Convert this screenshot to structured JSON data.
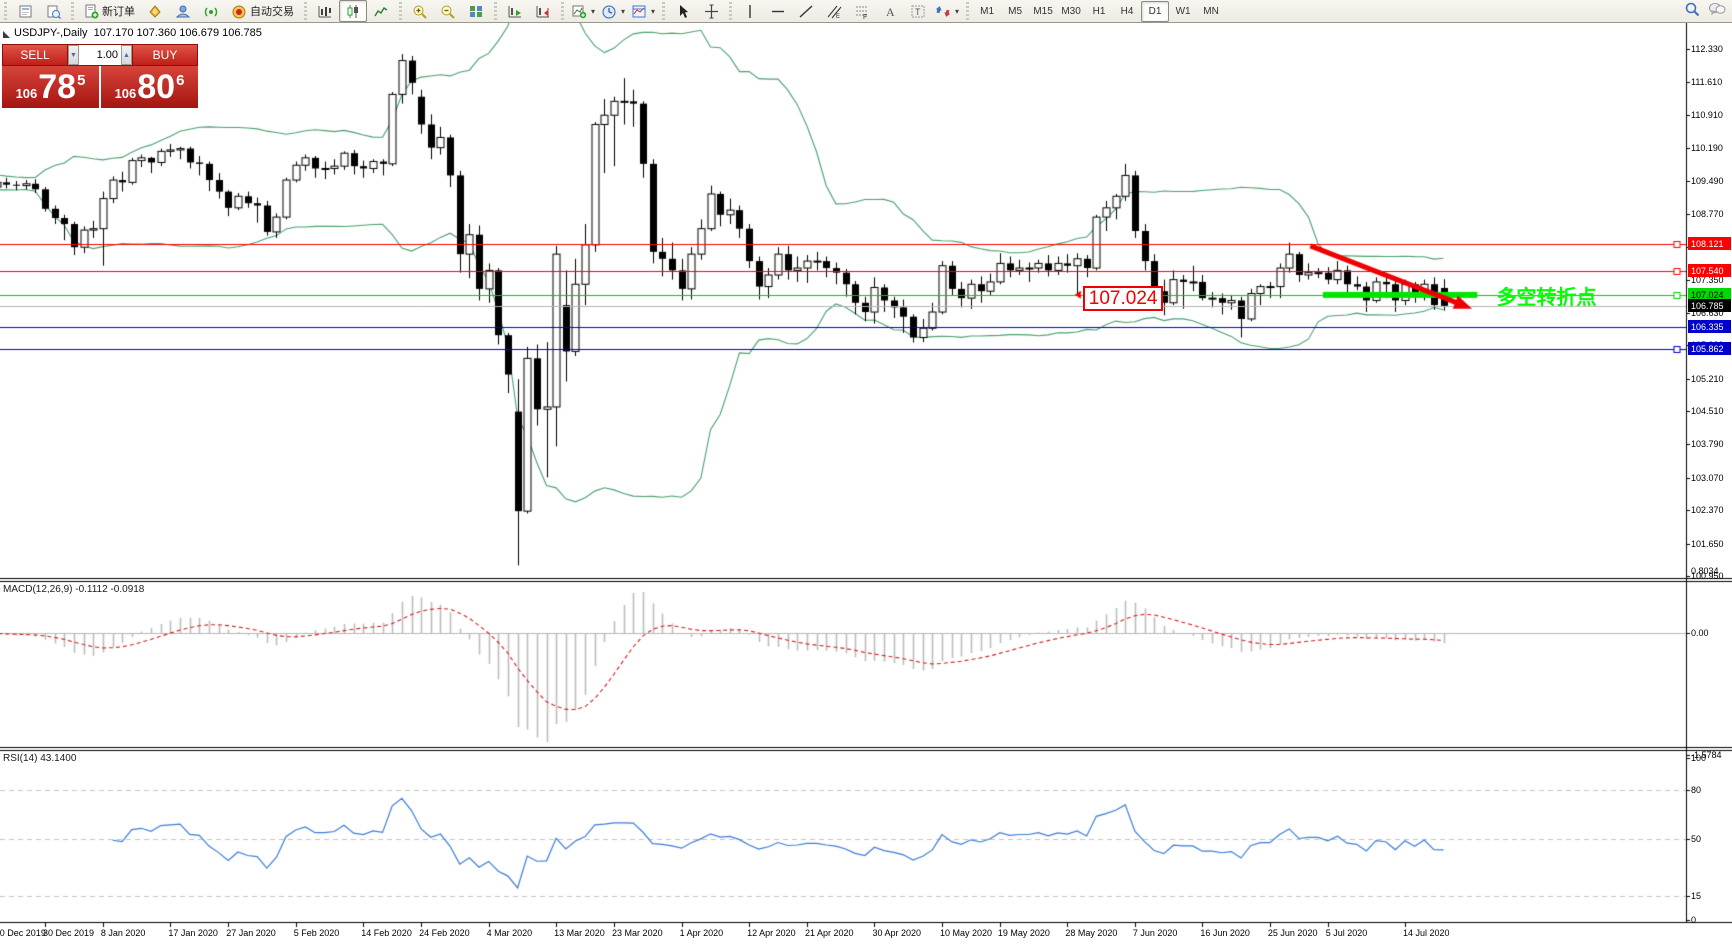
{
  "window": {
    "chart_title_symbol": "USDJPY-,Daily",
    "chart_title_ohlc": "107.170 107.360 106.679 106.785"
  },
  "toolbar": {
    "new_order_label": "新订单",
    "autotrading_label": "自动交易",
    "timeframes": [
      "M1",
      "M5",
      "M15",
      "M30",
      "H1",
      "H4",
      "D1",
      "W1",
      "MN"
    ],
    "active_timeframe": "D1",
    "icon_names": [
      "new-chart-icon",
      "chart-profile-icon",
      "new-order-icon",
      "gold-droplet-icon",
      "community-icon",
      "signals-icon",
      "autotrading-icon",
      "bar-chart-icon",
      "candlestick-chart-icon",
      "line-chart-icon",
      "zoom-in-icon",
      "zoom-out-icon",
      "tile-windows-icon",
      "auto-scroll-icon",
      "chart-shift-icon",
      "indicators-icon",
      "periods-icon",
      "templates-icon",
      "cursor-icon",
      "crosshair-icon",
      "vertical-line-icon",
      "horizontal-line-icon",
      "trendline-icon",
      "channel-icon",
      "fibonacci-icon",
      "text-icon",
      "text-label-icon",
      "arrows-icon",
      "search-icon",
      "chat-icon"
    ]
  },
  "trade_panel": {
    "sell_label": "SELL",
    "buy_label": "BUY",
    "volume": "1.00",
    "sell_prefix": "106",
    "sell_big": "78",
    "sell_sup": "5",
    "buy_prefix": "106",
    "buy_big": "80",
    "buy_sup": "6"
  },
  "indicators": {
    "macd_name": "MACD(12,26,9)",
    "macd_values": " -0.1112 -0.0918",
    "rsi_name": "RSI(14)",
    "rsi_value": " 43.1400"
  },
  "price_axis": {
    "ticks": [
      "112.330",
      "111.610",
      "110.910",
      "110.190",
      "109.490",
      "108.770",
      "108.050",
      "107.350",
      "106.630",
      "105.930",
      "105.210",
      "104.510",
      "103.790",
      "103.070",
      "102.370",
      "101.650",
      "100.950"
    ]
  },
  "macd_axis": [
    {
      "label": "0.8034",
      "v": 0.8034
    },
    {
      "label": "0.00",
      "v": 0.0
    },
    {
      "label": "-1.5784",
      "v": -1.5784
    }
  ],
  "rsi_axis": [
    {
      "label": "100",
      "v": 100
    },
    {
      "label": "80",
      "v": 80
    },
    {
      "label": "50",
      "v": 50
    },
    {
      "label": "15",
      "v": 15
    },
    {
      "label": "0",
      "v": 0
    }
  ],
  "date_axis": [
    {
      "label": "20 Dec 2019",
      "i": 2
    },
    {
      "label": "30 Dec 2019",
      "i": 7
    },
    {
      "label": "8 Jan 2020",
      "i": 13
    },
    {
      "label": "17 Jan 2020",
      "i": 20
    },
    {
      "label": "27 Jan 2020",
      "i": 26
    },
    {
      "label": "5 Feb 2020",
      "i": 33
    },
    {
      "label": "14 Feb 2020",
      "i": 40
    },
    {
      "label": "24 Feb 2020",
      "i": 46
    },
    {
      "label": "4 Mar 2020",
      "i": 53
    },
    {
      "label": "13 Mar 2020",
      "i": 60
    },
    {
      "label": "23 Mar 2020",
      "i": 66
    },
    {
      "label": "1 Apr 2020",
      "i": 73
    },
    {
      "label": "12 Apr 2020",
      "i": 80
    },
    {
      "label": "21 Apr 2020",
      "i": 86
    },
    {
      "label": "30 Apr 2020",
      "i": 93
    },
    {
      "label": "10 May 2020",
      "i": 100
    },
    {
      "label": "19 May 2020",
      "i": 106
    },
    {
      "label": "28 May 2020",
      "i": 113
    },
    {
      "label": "7 Jun 2020",
      "i": 120
    },
    {
      "label": "16 Jun 2020",
      "i": 127
    },
    {
      "label": "25 Jun 2020",
      "i": 134
    },
    {
      "label": "5 Jul 2020",
      "i": 140
    },
    {
      "label": "14 Jul 2020",
      "i": 148
    }
  ],
  "line_labels": [
    {
      "text": "108.121",
      "value": 108.121,
      "bg": "#ff0000",
      "fg": "#ffffff"
    },
    {
      "text": "107.540",
      "value": 107.54,
      "bg": "#ff0000",
      "fg": "#ffffff"
    },
    {
      "text": "107.024",
      "value": 107.024,
      "bg": "#00d900",
      "fg": "#000000"
    },
    {
      "text": "106.785",
      "value": 106.785,
      "bg": "#000000",
      "fg": "#ffffff"
    },
    {
      "text": "106.335",
      "value": 106.335,
      "bg": "#0000cc",
      "fg": "#ffffff"
    },
    {
      "text": "105.862",
      "value": 105.862,
      "bg": "#0000cc",
      "fg": "#ffffff"
    }
  ],
  "annotations": {
    "price_callout": {
      "text": "107.024",
      "i1": 114.6,
      "i2": 122.5,
      "p": 106.95
    },
    "cn_note": {
      "text": "多空转折点",
      "i": 157.5,
      "p": 107.05,
      "color": "#00ff00"
    },
    "green_bar": {
      "i1": 139.5,
      "i2": 155.5,
      "p": 107.02,
      "color": "#00e600",
      "thickness": 6
    },
    "trend_arrow": {
      "i1": 138.2,
      "p1": 108.08,
      "i2": 154.0,
      "p2": 106.8,
      "color": "#ee0000",
      "width": 5
    },
    "horizontal_lines": [
      {
        "value": 108.121,
        "color": "#ff0000",
        "handle": true
      },
      {
        "value": 107.54,
        "color": "#ff0000",
        "handle": true
      },
      {
        "value": 107.024,
        "color": "#00cc00",
        "handle": true
      },
      {
        "value": 106.335,
        "color": "#0000cc",
        "handle": false
      },
      {
        "value": 105.862,
        "color": "#0000cc",
        "handle": true
      }
    ],
    "bid_line": {
      "value": 106.785,
      "color": "#b4b4b4"
    }
  },
  "colors": {
    "bull": "#ffffff",
    "bear": "#000000",
    "candle_outline": "#000000",
    "bollinger": "#4aa170",
    "macd_hist": "#bdbdbd",
    "macd_signal": "#d42020",
    "rsi": "#3b7dd8",
    "grid_dash": "#c4c4c4",
    "panel_red": "#c02020"
  },
  "chart_data": {
    "type": "candlestick",
    "symbol": "USDJPY-",
    "timeframe": "Daily",
    "ylim": [
      100.95,
      112.33
    ],
    "indicator_params": {
      "bollinger": "20,2",
      "macd": "12,26,9",
      "rsi": "14"
    },
    "macd_range": [
      -1.5784,
      0.8034
    ],
    "rsi_levels": [
      80,
      50,
      15
    ],
    "candle_format": [
      "open",
      "high",
      "low",
      "close"
    ],
    "candles": [
      [
        109.62,
        109.7,
        109.45,
        109.55
      ],
      [
        109.55,
        109.65,
        109.25,
        109.35
      ],
      [
        109.35,
        109.52,
        109.22,
        109.45
      ],
      [
        109.45,
        109.55,
        109.32,
        109.4
      ],
      [
        109.4,
        109.48,
        109.28,
        109.38
      ],
      [
        109.38,
        109.5,
        109.3,
        109.42
      ],
      [
        109.42,
        109.52,
        109.22,
        109.3
      ],
      [
        109.3,
        109.35,
        108.82,
        108.88
      ],
      [
        108.88,
        108.95,
        108.55,
        108.68
      ],
      [
        108.68,
        108.75,
        108.2,
        108.55
      ],
      [
        108.55,
        108.6,
        107.88,
        108.05
      ],
      [
        108.05,
        108.5,
        107.92,
        108.42
      ],
      [
        108.42,
        108.62,
        108.25,
        108.45
      ],
      [
        108.45,
        109.25,
        107.65,
        109.1
      ],
      [
        109.1,
        109.58,
        109.0,
        109.5
      ],
      [
        109.5,
        109.68,
        109.25,
        109.45
      ],
      [
        109.45,
        109.98,
        109.4,
        109.92
      ],
      [
        109.92,
        110.05,
        109.78,
        109.98
      ],
      [
        109.98,
        110.0,
        109.65,
        109.88
      ],
      [
        109.88,
        110.18,
        109.8,
        110.12
      ],
      [
        110.12,
        110.28,
        110.0,
        110.15
      ],
      [
        110.15,
        110.22,
        109.95,
        110.18
      ],
      [
        110.18,
        110.22,
        109.75,
        109.88
      ],
      [
        109.88,
        110.02,
        109.6,
        109.85
      ],
      [
        109.85,
        109.9,
        109.26,
        109.5
      ],
      [
        109.5,
        109.65,
        109.1,
        109.25
      ],
      [
        109.25,
        109.28,
        108.72,
        108.9
      ],
      [
        108.9,
        109.22,
        108.85,
        109.15
      ],
      [
        109.15,
        109.25,
        108.9,
        109.0
      ],
      [
        109.0,
        109.12,
        108.58,
        108.95
      ],
      [
        108.95,
        109.05,
        108.3,
        108.38
      ],
      [
        108.38,
        108.78,
        108.25,
        108.7
      ],
      [
        108.7,
        109.55,
        108.65,
        109.5
      ],
      [
        109.5,
        109.9,
        109.45,
        109.82
      ],
      [
        109.82,
        110.05,
        109.7,
        109.98
      ],
      [
        109.98,
        110.02,
        109.55,
        109.75
      ],
      [
        109.75,
        109.9,
        109.52,
        109.75
      ],
      [
        109.75,
        109.95,
        109.62,
        109.8
      ],
      [
        109.8,
        110.12,
        109.72,
        110.08
      ],
      [
        110.08,
        110.15,
        109.62,
        109.8
      ],
      [
        109.8,
        109.92,
        109.55,
        109.75
      ],
      [
        109.75,
        109.95,
        109.65,
        109.9
      ],
      [
        109.9,
        109.95,
        109.6,
        109.85
      ],
      [
        109.85,
        111.4,
        109.8,
        111.35
      ],
      [
        111.35,
        112.22,
        111.15,
        112.08
      ],
      [
        112.08,
        112.18,
        111.35,
        111.6
      ],
      [
        111.3,
        111.45,
        110.5,
        110.7
      ],
      [
        110.7,
        110.92,
        109.95,
        110.2
      ],
      [
        110.2,
        110.65,
        110.05,
        110.42
      ],
      [
        110.42,
        110.48,
        109.35,
        109.6
      ],
      [
        109.6,
        109.7,
        107.5,
        107.9
      ],
      [
        107.9,
        108.55,
        107.38,
        108.32
      ],
      [
        108.32,
        108.52,
        106.9,
        107.15
      ],
      [
        107.15,
        107.7,
        106.85,
        107.55
      ],
      [
        107.55,
        107.6,
        105.95,
        106.15
      ],
      [
        106.15,
        106.2,
        104.9,
        105.3
      ],
      [
        104.5,
        105.2,
        101.18,
        102.35
      ],
      [
        102.35,
        105.9,
        102.3,
        105.65
      ],
      [
        105.65,
        105.95,
        104.2,
        104.55
      ],
      [
        104.55,
        106.0,
        103.08,
        104.6
      ],
      [
        104.6,
        108.08,
        103.75,
        107.9
      ],
      [
        106.8,
        107.55,
        105.15,
        105.8
      ],
      [
        105.8,
        107.8,
        105.7,
        107.25
      ],
      [
        107.25,
        108.55,
        106.8,
        108.1
      ],
      [
        108.1,
        110.75,
        107.95,
        110.7
      ],
      [
        110.7,
        111.25,
        109.65,
        110.9
      ],
      [
        110.9,
        111.3,
        109.8,
        111.2
      ],
      [
        111.2,
        111.7,
        110.7,
        111.2
      ],
      [
        111.2,
        111.45,
        110.65,
        111.15
      ],
      [
        111.15,
        111.2,
        109.55,
        109.85
      ],
      [
        109.85,
        109.95,
        107.7,
        107.95
      ],
      [
        107.95,
        108.25,
        107.42,
        107.8
      ],
      [
        107.8,
        108.15,
        107.35,
        107.55
      ],
      [
        107.55,
        107.8,
        106.9,
        107.15
      ],
      [
        107.15,
        108.05,
        106.92,
        107.9
      ],
      [
        107.9,
        108.65,
        107.78,
        108.45
      ],
      [
        108.45,
        109.38,
        108.4,
        109.2
      ],
      [
        109.2,
        109.25,
        108.5,
        108.75
      ],
      [
        108.75,
        109.1,
        108.55,
        108.85
      ],
      [
        108.85,
        108.95,
        108.25,
        108.45
      ],
      [
        108.45,
        108.55,
        107.6,
        107.75
      ],
      [
        107.75,
        107.85,
        106.92,
        107.2
      ],
      [
        107.2,
        107.6,
        106.95,
        107.45
      ],
      [
        107.45,
        108.05,
        107.35,
        107.9
      ],
      [
        107.9,
        108.08,
        107.35,
        107.55
      ],
      [
        107.55,
        107.85,
        107.3,
        107.6
      ],
      [
        107.6,
        107.88,
        107.28,
        107.75
      ],
      [
        107.75,
        107.95,
        107.55,
        107.75
      ],
      [
        107.75,
        107.85,
        107.4,
        107.6
      ],
      [
        107.6,
        107.72,
        107.25,
        107.5
      ],
      [
        107.5,
        107.58,
        106.98,
        107.25
      ],
      [
        107.25,
        107.32,
        106.6,
        106.85
      ],
      [
        106.85,
        106.98,
        106.45,
        106.65
      ],
      [
        106.65,
        107.4,
        106.4,
        107.18
      ],
      [
        107.18,
        107.25,
        106.65,
        106.9
      ],
      [
        106.9,
        106.98,
        106.52,
        106.75
      ],
      [
        106.75,
        106.92,
        106.2,
        106.55
      ],
      [
        106.55,
        106.6,
        105.99,
        106.1
      ],
      [
        106.1,
        106.5,
        106.0,
        106.3
      ],
      [
        106.3,
        106.85,
        106.25,
        106.65
      ],
      [
        106.65,
        107.75,
        106.6,
        107.65
      ],
      [
        107.65,
        107.75,
        107.02,
        107.15
      ],
      [
        107.15,
        107.3,
        106.75,
        106.95
      ],
      [
        106.95,
        107.35,
        106.72,
        107.25
      ],
      [
        107.25,
        107.42,
        106.85,
        107.1
      ],
      [
        107.1,
        107.48,
        107.02,
        107.3
      ],
      [
        107.3,
        107.92,
        107.25,
        107.7
      ],
      [
        107.7,
        107.85,
        107.4,
        107.55
      ],
      [
        107.55,
        107.78,
        107.45,
        107.6
      ],
      [
        107.6,
        107.72,
        107.3,
        107.6
      ],
      [
        107.6,
        107.78,
        107.5,
        107.7
      ],
      [
        107.7,
        107.88,
        107.42,
        107.55
      ],
      [
        107.55,
        107.85,
        107.45,
        107.7
      ],
      [
        107.7,
        107.9,
        107.5,
        107.65
      ],
      [
        107.65,
        107.92,
        107.06,
        107.8
      ],
      [
        107.8,
        107.88,
        107.4,
        107.6
      ],
      [
        107.6,
        108.75,
        107.55,
        108.7
      ],
      [
        108.7,
        109.05,
        108.4,
        108.9
      ],
      [
        108.9,
        109.2,
        108.65,
        109.15
      ],
      [
        109.15,
        109.85,
        109.05,
        109.6
      ],
      [
        109.6,
        109.7,
        108.25,
        108.4
      ],
      [
        108.4,
        108.55,
        107.55,
        107.75
      ],
      [
        107.75,
        107.9,
        106.95,
        107.1
      ],
      [
        107.1,
        107.35,
        106.58,
        106.85
      ],
      [
        106.85,
        107.55,
        106.8,
        107.35
      ],
      [
        107.35,
        107.45,
        106.72,
        107.3
      ],
      [
        107.3,
        107.65,
        107.1,
        107.3
      ],
      [
        107.3,
        107.45,
        106.9,
        106.95
      ],
      [
        106.95,
        107.08,
        106.75,
        106.95
      ],
      [
        106.95,
        107.05,
        106.6,
        106.85
      ],
      [
        106.85,
        107.02,
        106.7,
        106.9
      ],
      [
        106.9,
        106.98,
        106.1,
        106.5
      ],
      [
        106.5,
        107.15,
        106.45,
        107.05
      ],
      [
        107.05,
        107.25,
        106.8,
        107.2
      ],
      [
        107.2,
        107.3,
        106.95,
        107.2
      ],
      [
        107.2,
        107.7,
        106.95,
        107.6
      ],
      [
        107.6,
        108.15,
        107.5,
        107.9
      ],
      [
        107.9,
        107.95,
        107.3,
        107.45
      ],
      [
        107.45,
        107.7,
        107.35,
        107.5
      ],
      [
        107.5,
        107.6,
        107.38,
        107.5
      ],
      [
        107.5,
        107.62,
        107.25,
        107.35
      ],
      [
        107.35,
        107.75,
        107.25,
        107.55
      ],
      [
        107.55,
        107.65,
        107.05,
        107.25
      ],
      [
        107.25,
        107.42,
        107.12,
        107.2
      ],
      [
        107.2,
        107.3,
        106.65,
        106.9
      ],
      [
        106.9,
        107.4,
        106.85,
        107.3
      ],
      [
        107.3,
        107.45,
        106.95,
        107.25
      ],
      [
        107.25,
        107.35,
        106.65,
        106.9
      ],
      [
        106.9,
        107.35,
        106.8,
        107.25
      ],
      [
        107.25,
        107.3,
        106.85,
        107.0
      ],
      [
        107.0,
        107.35,
        106.9,
        107.25
      ],
      [
        107.25,
        107.4,
        106.7,
        106.8
      ],
      [
        107.17,
        107.36,
        106.679,
        106.785
      ]
    ]
  }
}
